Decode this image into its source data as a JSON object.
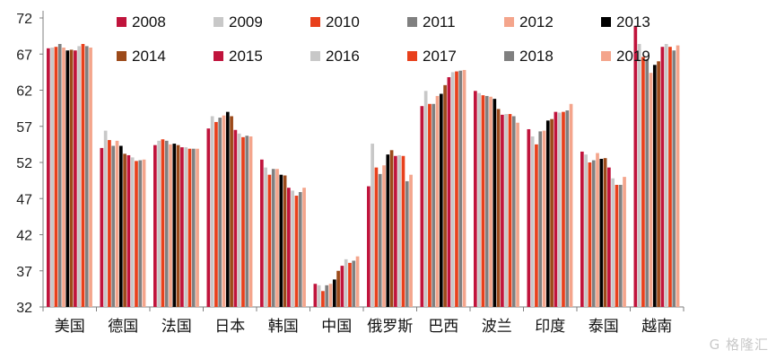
{
  "chart_data": {
    "type": "bar",
    "categories": [
      "美国",
      "德国",
      "法国",
      "日本",
      "韩国",
      "中国",
      "俄罗斯",
      "巴西",
      "波兰",
      "印度",
      "泰国",
      "越南"
    ],
    "ylim": [
      32,
      72
    ],
    "yticks": [
      32,
      37,
      42,
      47,
      52,
      57,
      62,
      67,
      72
    ],
    "grid": false,
    "legend_position": "top",
    "series": [
      {
        "name": "2008",
        "color": "#C0143C",
        "values": [
          67.8,
          54.0,
          54.4,
          56.7,
          52.4,
          35.2,
          48.7,
          59.8,
          61.9,
          56.6,
          53.5,
          70.9
        ]
      },
      {
        "name": "2009",
        "color": "#C8C8C8",
        "values": [
          67.9,
          56.4,
          55.0,
          58.4,
          51.3,
          35.0,
          54.6,
          61.9,
          61.6,
          55.6,
          53.1,
          68.4
        ]
      },
      {
        "name": "2010",
        "color": "#E8401C",
        "values": [
          68.0,
          55.1,
          55.2,
          57.6,
          50.3,
          34.2,
          51.3,
          60.1,
          61.3,
          54.5,
          52.0,
          66.6
        ]
      },
      {
        "name": "2011",
        "color": "#808080",
        "values": [
          68.4,
          54.3,
          55.0,
          58.2,
          51.1,
          35.0,
          50.4,
          60.1,
          61.2,
          56.3,
          52.3,
          66.3
        ]
      },
      {
        "name": "2012",
        "color": "#F4A58C",
        "values": [
          67.9,
          55.0,
          54.5,
          58.5,
          51.1,
          35.2,
          51.6,
          61.2,
          61.1,
          56.4,
          53.3,
          64.4
        ]
      },
      {
        "name": "2013",
        "color": "#000000",
        "values": [
          67.5,
          54.3,
          54.6,
          59.0,
          50.3,
          35.8,
          53.1,
          61.5,
          60.8,
          57.8,
          52.5,
          65.5
        ]
      },
      {
        "name": "2014",
        "color": "#9C4A1A",
        "values": [
          67.6,
          53.2,
          54.4,
          58.4,
          50.2,
          37.0,
          53.7,
          62.7,
          59.4,
          58.0,
          52.6,
          66.0
        ]
      },
      {
        "name": "2015",
        "color": "#C0143C",
        "values": [
          67.5,
          53.0,
          54.1,
          56.5,
          48.5,
          37.7,
          52.9,
          63.8,
          58.6,
          59.0,
          51.3,
          68.0
        ]
      },
      {
        "name": "2016",
        "color": "#C8C8C8",
        "values": [
          68.1,
          52.7,
          54.1,
          56.0,
          48.1,
          38.6,
          53.0,
          64.5,
          58.7,
          58.9,
          49.8,
          68.4
        ]
      },
      {
        "name": "2017",
        "color": "#E8401C",
        "values": [
          68.4,
          52.2,
          53.9,
          55.5,
          47.4,
          38.1,
          52.9,
          64.6,
          58.7,
          59.0,
          48.9,
          68.0
        ]
      },
      {
        "name": "2018",
        "color": "#808080",
        "values": [
          68.1,
          52.3,
          53.9,
          55.7,
          47.9,
          38.4,
          49.4,
          64.7,
          58.4,
          59.2,
          48.9,
          67.5
        ]
      },
      {
        "name": "2019",
        "color": "#F4A58C",
        "values": [
          67.9,
          52.4,
          53.9,
          55.6,
          48.5,
          39.0,
          50.3,
          64.8,
          57.5,
          60.1,
          50.0,
          68.2
        ]
      }
    ]
  },
  "watermark": "G 格隆汇"
}
